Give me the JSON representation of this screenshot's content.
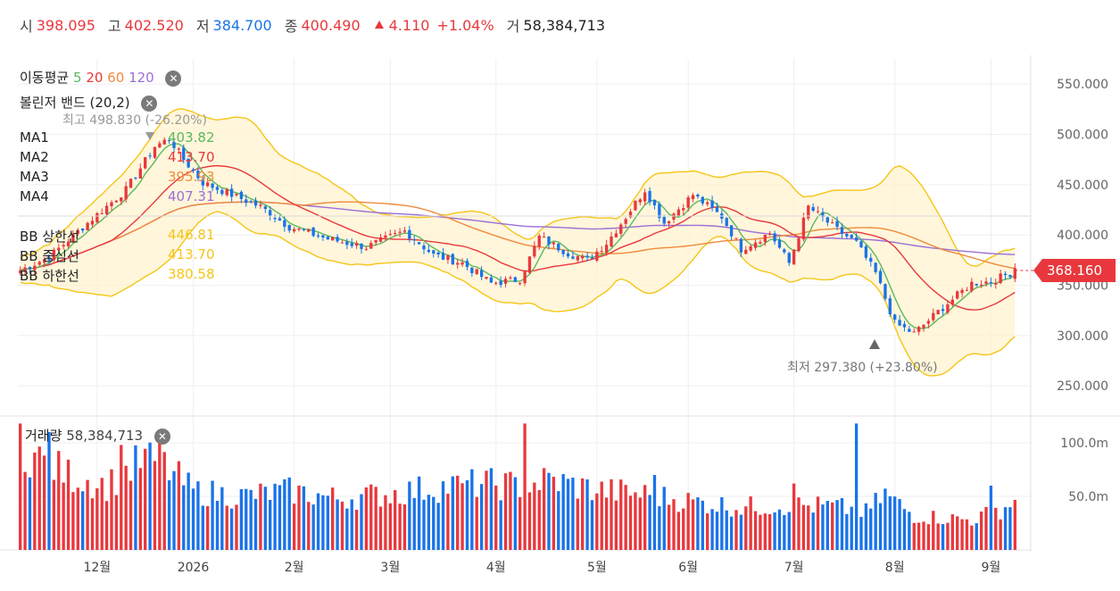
{
  "header": {
    "open_label": "시",
    "open": "398.095",
    "high_label": "고",
    "high": "402.520",
    "low_label": "저",
    "low": "384.700",
    "close_label": "종",
    "close": "400.490",
    "change": "4.110",
    "change_pct": "+1.04%",
    "volume_label": "거",
    "volume": "58,384,713",
    "colors": {
      "up": "#e8383d",
      "down": "#1a73e8"
    }
  },
  "legend": {
    "ma_title": "이동평균",
    "ma_periods": [
      "5",
      "20",
      "60",
      "120"
    ],
    "bb_title": "볼린저 밴드 (20,2)",
    "volume_title": "거래량",
    "volume_value": "58,384,713",
    "close_icon": "close-circle-icon"
  },
  "indicators": [
    {
      "label": "MA1",
      "value": "403.82",
      "color": "#5cb85c"
    },
    {
      "label": "MA2",
      "value": "413.70",
      "color": "#e8383d"
    },
    {
      "label": "MA3",
      "value": "395.93",
      "color": "#f08a3c"
    },
    {
      "label": "MA4",
      "value": "407.31",
      "color": "#9b6fd6"
    },
    {
      "label": "BB 상한선",
      "value": "446.81",
      "color": "#f5c518"
    },
    {
      "label": "BB 중심선",
      "value": "413.70",
      "color": "#f5c518"
    },
    {
      "label": "BB 하한선",
      "value": "380.58",
      "color": "#f5c518"
    }
  ],
  "annotations": {
    "high": "최고  498.830 (-26.20%)",
    "low": "최저  297.380 (+23.80%)",
    "current_price": "368.160"
  },
  "chart_data": {
    "type": "candlestick",
    "price_axis": {
      "ticks": [
        "550.000",
        "500.000",
        "450.000",
        "400.000",
        "350.000",
        "300.000",
        "250.000"
      ],
      "values": [
        550,
        500,
        450,
        400,
        350,
        300,
        250
      ],
      "range": [
        220,
        575
      ]
    },
    "volume_axis": {
      "ticks": [
        "100.0m",
        "50.0m"
      ],
      "values": [
        100,
        50
      ],
      "range": [
        0,
        125
      ]
    },
    "x_ticks": [
      "12월",
      "2026",
      "2월",
      "3월",
      "4월",
      "5월",
      "6월",
      "7월",
      "8월",
      "9월"
    ],
    "x_tick_index": [
      16,
      36,
      57,
      77,
      99,
      120,
      139,
      161,
      182,
      202
    ],
    "n_bars": 208,
    "anchors": [
      [
        0,
        365
      ],
      [
        6,
        378
      ],
      [
        14,
        412
      ],
      [
        22,
        445
      ],
      [
        28,
        488
      ],
      [
        31,
        496
      ],
      [
        34,
        475
      ],
      [
        38,
        452
      ],
      [
        44,
        440
      ],
      [
        50,
        428
      ],
      [
        56,
        408
      ],
      [
        64,
        396
      ],
      [
        72,
        388
      ],
      [
        80,
        404
      ],
      [
        86,
        380
      ],
      [
        92,
        372
      ],
      [
        98,
        352
      ],
      [
        104,
        356
      ],
      [
        108,
        398
      ],
      [
        114,
        382
      ],
      [
        118,
        375
      ],
      [
        122,
        392
      ],
      [
        126,
        418
      ],
      [
        130,
        445
      ],
      [
        134,
        412
      ],
      [
        140,
        440
      ],
      [
        146,
        418
      ],
      [
        150,
        386
      ],
      [
        156,
        402
      ],
      [
        160,
        372
      ],
      [
        164,
        428
      ],
      [
        170,
        405
      ],
      [
        174,
        392
      ],
      [
        178,
        362
      ],
      [
        182,
        312
      ],
      [
        186,
        302
      ],
      [
        192,
        328
      ],
      [
        198,
        352
      ],
      [
        202,
        354
      ],
      [
        206,
        362
      ],
      [
        207,
        368
      ]
    ],
    "volume_anchors": [
      [
        0,
        95
      ],
      [
        10,
        70
      ],
      [
        18,
        60
      ],
      [
        26,
        85
      ],
      [
        30,
        78
      ],
      [
        36,
        55
      ],
      [
        46,
        50
      ],
      [
        56,
        55
      ],
      [
        66,
        48
      ],
      [
        76,
        52
      ],
      [
        86,
        58
      ],
      [
        96,
        62
      ],
      [
        104,
        60
      ],
      [
        110,
        65
      ],
      [
        120,
        56
      ],
      [
        130,
        52
      ],
      [
        140,
        45
      ],
      [
        150,
        40
      ],
      [
        160,
        42
      ],
      [
        170,
        40
      ],
      [
        176,
        35
      ],
      [
        180,
        52
      ],
      [
        186,
        32
      ],
      [
        192,
        30
      ],
      [
        198,
        28
      ],
      [
        204,
        38
      ],
      [
        207,
        45
      ]
    ],
    "volume_spikes": [
      [
        0,
        118
      ],
      [
        6,
        110
      ],
      [
        21,
        98
      ],
      [
        29,
        112
      ],
      [
        93,
        65
      ],
      [
        105,
        118
      ],
      [
        132,
        70
      ],
      [
        161,
        62
      ],
      [
        174,
        118
      ],
      [
        202,
        60
      ]
    ]
  }
}
